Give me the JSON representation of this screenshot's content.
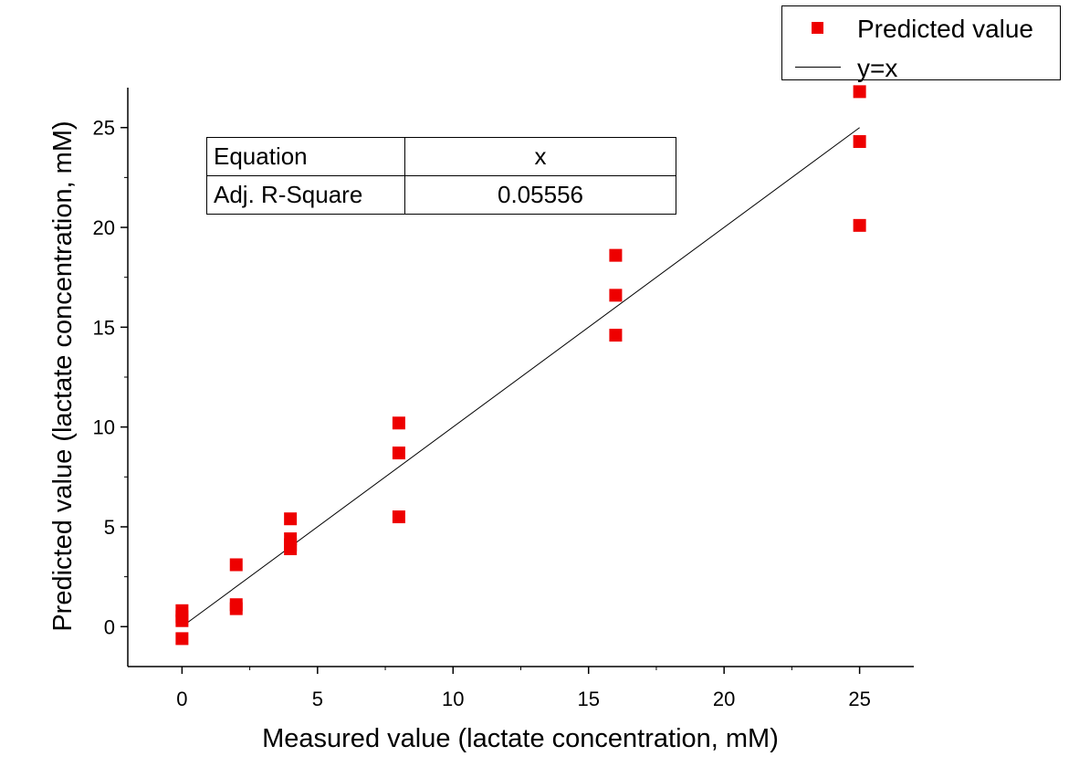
{
  "chart_data": {
    "type": "scatter",
    "xlabel": "Measured value (lactate concentration, mM)",
    "ylabel": "Predicted value (lactate concentration, mM)",
    "xlim": [
      -2,
      27
    ],
    "ylim": [
      -2,
      27
    ],
    "xticks": [
      "0",
      "5",
      "10",
      "15",
      "20",
      "25"
    ],
    "yticks": [
      "0",
      "5",
      "10",
      "15",
      "20",
      "25"
    ],
    "grid": false,
    "legend_position": "top-right",
    "series": [
      {
        "name": "Predicted value",
        "marker": "square",
        "color": "#ee0000",
        "x": [
          0,
          0,
          0,
          0,
          2,
          2,
          2,
          4,
          4,
          4,
          4,
          8,
          8,
          8,
          16,
          16,
          16,
          25,
          25,
          25
        ],
        "y": [
          0.8,
          0.5,
          0.3,
          -0.6,
          3.1,
          1.1,
          0.9,
          5.4,
          4.4,
          4.1,
          3.9,
          10.2,
          8.7,
          5.5,
          18.6,
          16.6,
          14.6,
          26.8,
          24.3,
          20.1
        ]
      },
      {
        "name": "y=x",
        "type": "line",
        "color": "#000000",
        "x": [
          0,
          25
        ],
        "y": [
          0,
          25
        ]
      }
    ],
    "table": {
      "rows": [
        [
          "Equation",
          "x"
        ],
        [
          "Adj. R-Square",
          "0.05556"
        ]
      ]
    }
  }
}
